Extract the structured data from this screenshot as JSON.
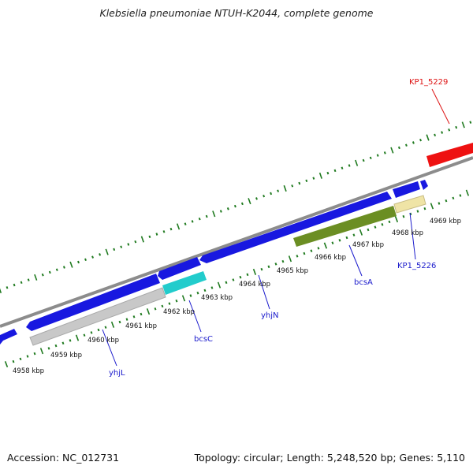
{
  "title": "Klebsiella pneumoniae NTUH-K2044, complete genome",
  "footer": {
    "accession": "Accession: NC_012731",
    "summary": "Topology: circular; Length: 5,248,520 bp; Genes: 5,110"
  },
  "colors": {
    "backbone": "#8c8c8c",
    "cds_forward": "#1818e0",
    "reverse_grey": "#c8c8c8",
    "bcsC": "#22cccc",
    "bcsA": "#6b8e23",
    "KP1_5226": "#efe4a6",
    "KP1_5229": "#ee1111",
    "ticks": "#1f7a1f",
    "gene_label": "#1a1acc",
    "red_label": "#dd1111"
  },
  "kbp_labels": [
    "4958 kbp",
    "4959 kbp",
    "4960 kbp",
    "4961 kbp",
    "4962 kbp",
    "4963 kbp",
    "4964 kbp",
    "4965 kbp",
    "4966 kbp",
    "4967 kbp",
    "4968 kbp",
    "4969 kbp"
  ],
  "gene_labels": {
    "yhjL": "yhjL",
    "bcsC": "bcsC",
    "yhjN": "yhjN",
    "bcsA": "bcsA",
    "KP1_5226": "KP1_5226",
    "KP1_5229": "KP1_5229"
  }
}
